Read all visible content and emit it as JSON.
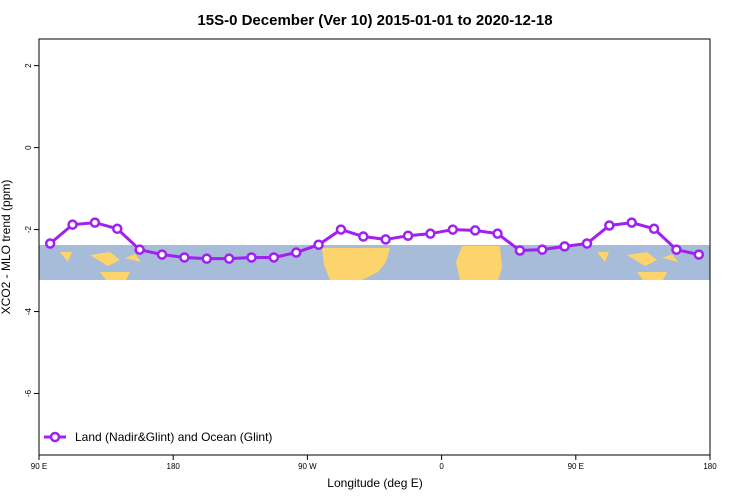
{
  "chart_data": {
    "type": "line",
    "title": "15S-0 December (Ver 10)   2015-01-01 to 2020-12-18",
    "x_label": "Longitude (deg E)",
    "y_label": "XCO2 - MLO trend (ppm)",
    "x": [
      97.5,
      112.5,
      127.5,
      142.5,
      157.5,
      172.5,
      187.5,
      202.5,
      217.5,
      232.5,
      247.5,
      262.5,
      277.5,
      292.5,
      307.5,
      322.5,
      337.5,
      352.5,
      367.5,
      382.5,
      397.5,
      412.5,
      427.5,
      442.5,
      457.5,
      472.5,
      487.5,
      502.5,
      517.5,
      532.5
    ],
    "series": [
      {
        "name": "Land (Nadir&Glint) and Ocean (Glint)",
        "color": "#a020f0",
        "values": [
          -2.34,
          -1.88,
          -1.83,
          -1.98,
          -2.49,
          -2.61,
          -2.68,
          -2.71,
          -2.71,
          -2.68,
          -2.68,
          -2.56,
          -2.37,
          -2.0,
          -2.17,
          -2.24,
          -2.15,
          -2.1,
          -2.0,
          -2.02,
          -2.1,
          -2.51,
          -2.49,
          -2.41,
          -2.34,
          -1.9,
          -1.83,
          -1.98,
          -2.49,
          -2.61
        ]
      }
    ],
    "xlim": [
      90,
      540
    ],
    "xticks": [
      {
        "value": 90,
        "label": "90 E"
      },
      180,
      {
        "value": 270,
        "label": "90 W"
      },
      {
        "value": 360,
        "label": "0"
      },
      {
        "value": 450,
        "label": "90 E"
      },
      {
        "value": 540,
        "label": "180"
      }
    ],
    "ylim": [
      -7.5,
      2.65
    ],
    "yticks": [
      -6,
      -4,
      -2,
      0,
      2
    ],
    "legend_position": "bottom-left"
  }
}
